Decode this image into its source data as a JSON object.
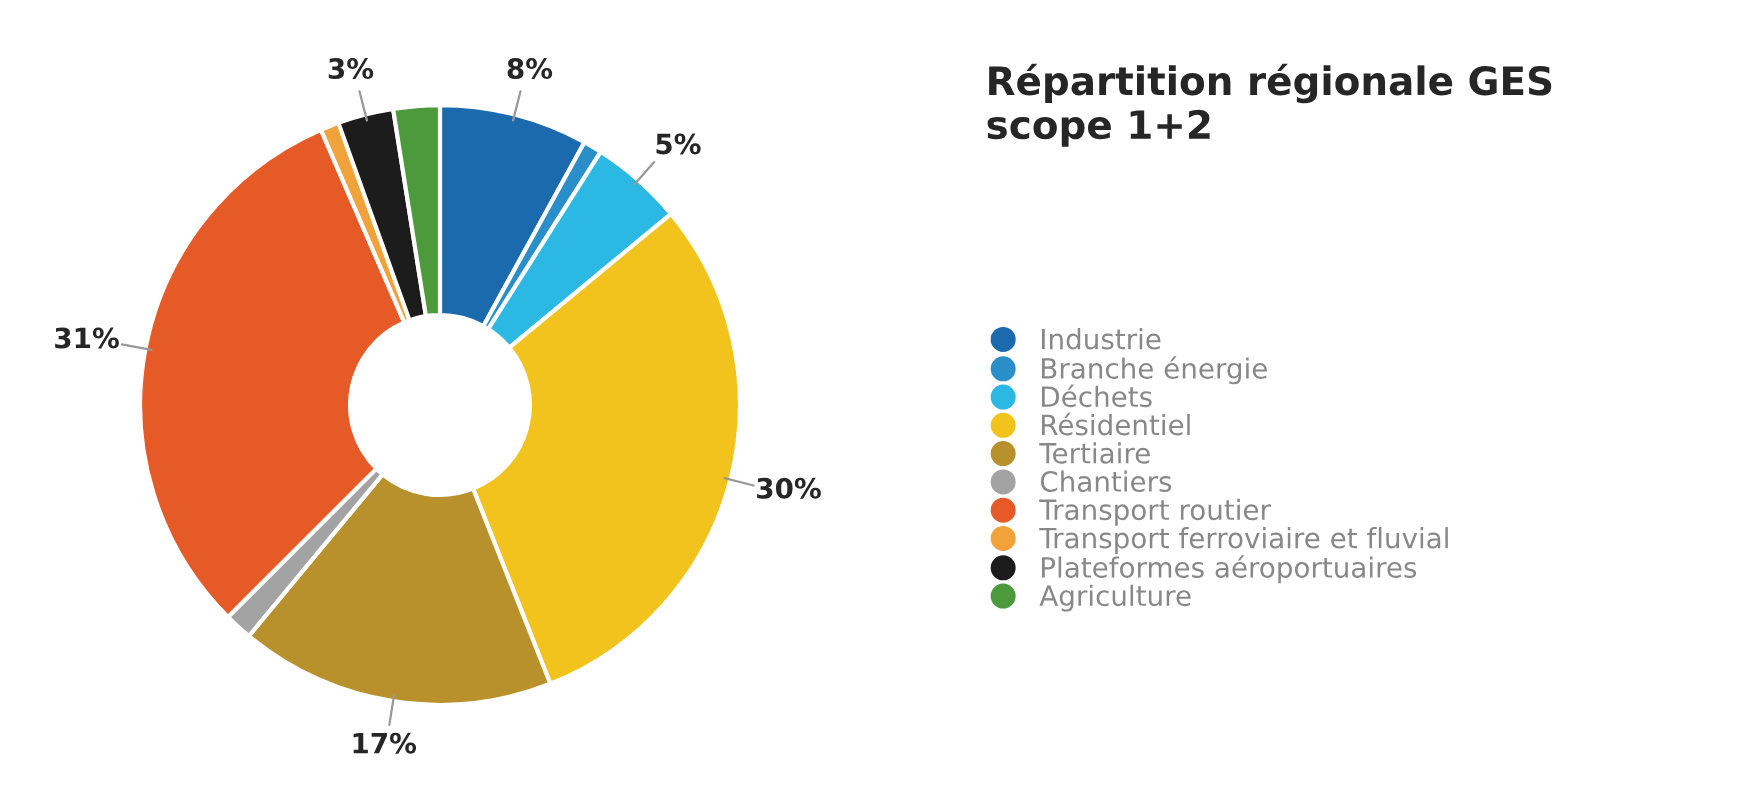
{
  "chart_data": {
    "type": "donut",
    "title": "Répartition régionale GES\nscope 1+2",
    "categories": [
      "Industrie",
      "Branche énergie",
      "Déchets",
      "Résidentiel",
      "Tertiaire",
      "Chantiers",
      "Transport routier",
      "Transport ferroviaire et fluvial",
      "Plateformes aéroportuaires",
      "Agriculture"
    ],
    "values": [
      8,
      1,
      5,
      30,
      17,
      1.5,
      31,
      1,
      3,
      2.5
    ],
    "value_labels": [
      "8%",
      null,
      "5%",
      "30%",
      "17%",
      null,
      "31%",
      null,
      "3%",
      null
    ],
    "colors": [
      "#1a6aad",
      "#2a8fc8",
      "#2bb8e3",
      "#f1c31c",
      "#b8912c",
      "#a3a3a3",
      "#e65a27",
      "#f2a23a",
      "#1c1c1c",
      "#4c9a3c"
    ],
    "legend": "right"
  }
}
